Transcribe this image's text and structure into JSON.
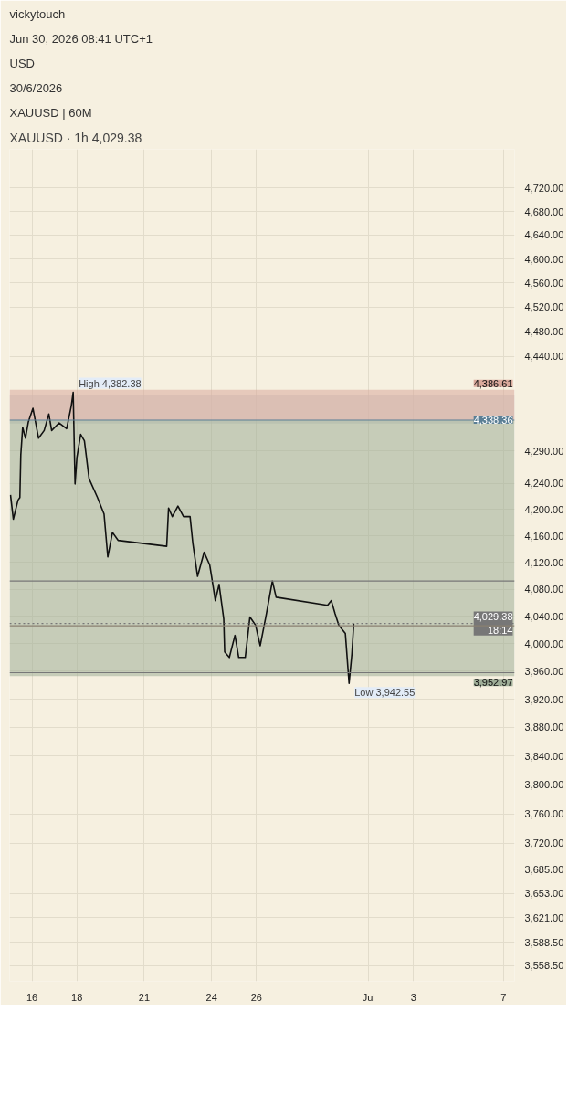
{
  "chart_data": {
    "type": "line",
    "title": "XAUUSD · 1h  4,029.38",
    "annotations": [
      "vickytouch",
      "Jun 30, 2026 08:41 UTC+1",
      "USD",
      "30/6/2026",
      "XAUUSD | 60M",
      {
        "text": "High 4,382.38",
        "x": "2026-06-17T20:00",
        "y": 4382.38
      },
      {
        "text": "Low 3,942.55",
        "x": "2026-06-30T03:00",
        "y": 3942.55
      }
    ],
    "x": [
      "2026-06-15T01:00",
      "2026-06-15T04:00",
      "2026-06-15T09:00",
      "2026-06-15T11:00",
      "2026-06-15T12:00",
      "2026-06-15T14:00",
      "2026-06-15T17:00",
      "2026-06-15T20:00",
      "2026-06-16T01:00",
      "2026-06-16T07:00",
      "2026-06-16T13:00",
      "2026-06-16T18:00",
      "2026-06-16T21:00",
      "2026-06-17T05:00",
      "2026-06-17T13:00",
      "2026-06-17T18:00",
      "2026-06-17T20:00",
      "2026-06-17T22:00",
      "2026-06-18T00:00",
      "2026-06-18T04:00",
      "2026-06-18T08:00",
      "2026-06-18T13:00",
      "2026-06-18T22:00",
      "2026-06-19T05:00",
      "2026-06-19T09:00",
      "2026-06-19T14:00",
      "2026-06-19T20:00",
      "2026-06-22T00:00",
      "2026-06-22T02:00",
      "2026-06-22T06:00",
      "2026-06-22T12:00",
      "2026-06-22T18:00",
      "2026-06-23T01:00",
      "2026-06-23T04:00",
      "2026-06-23T09:00",
      "2026-06-23T16:00",
      "2026-06-23T22:00",
      "2026-06-24T00:00",
      "2026-06-24T04:00",
      "2026-06-24T08:00",
      "2026-06-24T13:00",
      "2026-06-24T14:00",
      "2026-06-24T19:00",
      "2026-06-25T01:00",
      "2026-06-25T05:00",
      "2026-06-25T12:00",
      "2026-06-25T17:00",
      "2026-06-25T23:00",
      "2026-06-26T04:00",
      "2026-06-26T10:00",
      "2026-06-26T17:00",
      "2026-06-26T21:00",
      "2026-06-29T04:00",
      "2026-06-29T08:00",
      "2026-06-29T12:00",
      "2026-06-29T16:00",
      "2026-06-29T23:00",
      "2026-06-30T03:00",
      "2026-06-30T06:00",
      "2026-06-30T08:00"
    ],
    "series": [
      {
        "color": "#111111",
        "values": [
          4222,
          4185,
          4214,
          4218,
          4284,
          4327,
          4310,
          4335,
          4357,
          4310,
          4322,
          4348,
          4322,
          4334,
          4325,
          4361,
          4382.38,
          4239,
          4280,
          4316,
          4306,
          4247,
          4218,
          4193,
          4128,
          4165,
          4153,
          4144,
          4202,
          4189,
          4205,
          4189,
          4189,
          4148,
          4099,
          4135,
          4116,
          4099,
          4063,
          4087,
          4036,
          3988,
          3980,
          4012,
          3980,
          3980,
          4039,
          4027,
          3997,
          4039,
          4092,
          4068,
          4056,
          4063,
          4044,
          4027,
          4015,
          3942.55,
          3985,
          4029.38
        ]
      }
    ],
    "xlim": [
      "2026-06-15T00:00",
      "2026-07-07T12:00"
    ],
    "xticks": [
      {
        "value": "2026-06-16",
        "label": "16"
      },
      {
        "value": "2026-06-18",
        "label": "18"
      },
      {
        "value": "2026-06-21",
        "label": "21"
      },
      {
        "value": "2026-06-24",
        "label": "24"
      },
      {
        "value": "2026-06-26",
        "label": "26"
      },
      {
        "value": "2026-07-01",
        "label": "Jul"
      },
      {
        "value": "2026-07-03",
        "label": "3"
      },
      {
        "value": "2026-07-07",
        "label": "7"
      }
    ],
    "log": true,
    "ylim": [
      3538,
      4787
    ],
    "yticks": [
      {
        "value": 4720,
        "label": "4,720.00"
      },
      {
        "value": 4680,
        "label": "4,680.00"
      },
      {
        "value": 4640,
        "label": "4,640.00"
      },
      {
        "value": 4600,
        "label": "4,600.00"
      },
      {
        "value": 4560,
        "label": "4,560.00"
      },
      {
        "value": 4520,
        "label": "4,520.00"
      },
      {
        "value": 4480,
        "label": "4,480.00"
      },
      {
        "value": 4440,
        "label": "4,440.00"
      },
      {
        "value": 4290,
        "label": "4,290.00"
      },
      {
        "value": 4240,
        "label": "4,240.00"
      },
      {
        "value": 4200,
        "label": "4,200.00"
      },
      {
        "value": 4160,
        "label": "4,160.00"
      },
      {
        "value": 4120,
        "label": "4,120.00"
      },
      {
        "value": 4080,
        "label": "4,080.00"
      },
      {
        "value": 4040,
        "label": "4,040.00"
      },
      {
        "value": 4000,
        "label": "4,000.00"
      },
      {
        "value": 3960,
        "label": "3,960.00"
      },
      {
        "value": 3920,
        "label": "3,920.00"
      },
      {
        "value": 3880,
        "label": "3,880.00"
      },
      {
        "value": 3840,
        "label": "3,840.00"
      },
      {
        "value": 3800,
        "label": "3,800.00"
      },
      {
        "value": 3760,
        "label": "3,760.00"
      },
      {
        "value": 3720,
        "label": "3,720.00"
      },
      {
        "value": 3685,
        "label": "3,685.00"
      },
      {
        "value": 3653,
        "label": "3,653.00"
      },
      {
        "value": 3621,
        "label": "3,621.00"
      },
      {
        "value": 3588.5,
        "label": "3,588.50"
      },
      {
        "value": 3558.5,
        "label": "3,558.50"
      }
    ],
    "grid": true,
    "marker": "none",
    "line_style": "solid",
    "bands": [
      {
        "axis": "y",
        "from": 4333,
        "to": 4379,
        "label": null,
        "color": "#c9c9c4"
      },
      {
        "axis": "y",
        "from": 4386.61,
        "to": 4338.36,
        "label": "4,386.61",
        "color": "#d9a99c"
      },
      {
        "axis": "y",
        "from": 3952.97,
        "to": 4338.36,
        "label": "3,952.97",
        "color": "#9fae98"
      }
    ],
    "ref_lines": [
      {
        "axis": "y",
        "value": 4338.36,
        "label": "4,338.36",
        "color": "#5b7f95",
        "line_style": "solid"
      },
      {
        "axis": "y",
        "value": 4029.38,
        "label": "4,029.38\n18:14",
        "color": "#777777",
        "line_style": "dotted"
      },
      {
        "axis": "y",
        "value": 4092,
        "label": null,
        "color": "#777777",
        "line_style": "solid"
      },
      {
        "axis": "y",
        "value": 3958,
        "label": null,
        "color": "#777777",
        "line_style": "solid"
      },
      {
        "axis": "y",
        "value": 4026,
        "label": null,
        "color": "#8a8070",
        "line_style": "solid"
      }
    ]
  }
}
